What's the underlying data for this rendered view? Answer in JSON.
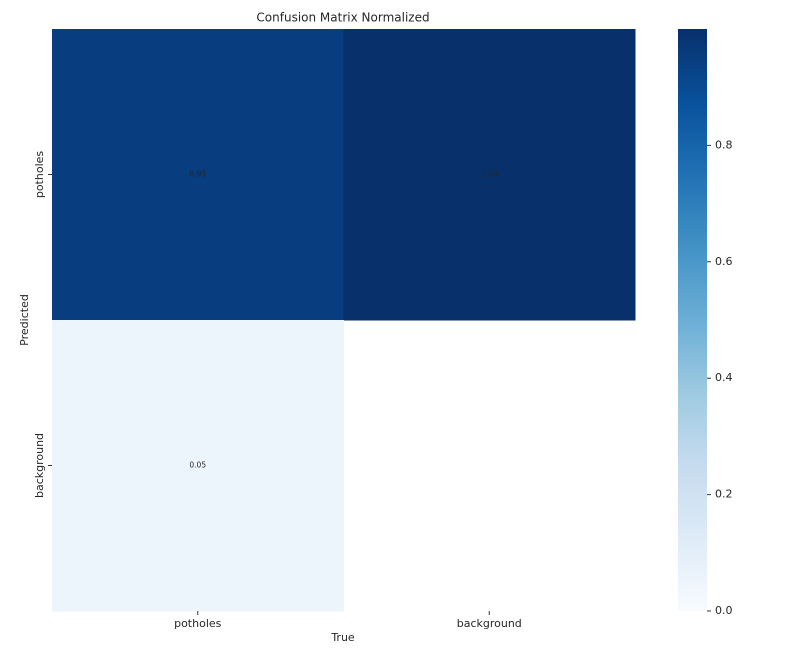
{
  "chart_data": {
    "type": "heatmap",
    "title": "Confusion Matrix Normalized",
    "x_label": "True",
    "y_label": "Predicted",
    "x_categories": [
      "potholes",
      "background"
    ],
    "y_categories": [
      "potholes",
      "background"
    ],
    "values": [
      [
        0.95,
        1.0
      ],
      [
        0.05,
        null
      ]
    ],
    "value_labels": [
      [
        "0.95",
        "1.00"
      ],
      [
        "0.05",
        null
      ]
    ],
    "colormap": "Blues",
    "clim": [
      0,
      1
    ],
    "cticks": [
      {
        "value": 0,
        "label": "0.0"
      },
      0.2,
      0.4,
      0.6,
      0.8
    ]
  }
}
